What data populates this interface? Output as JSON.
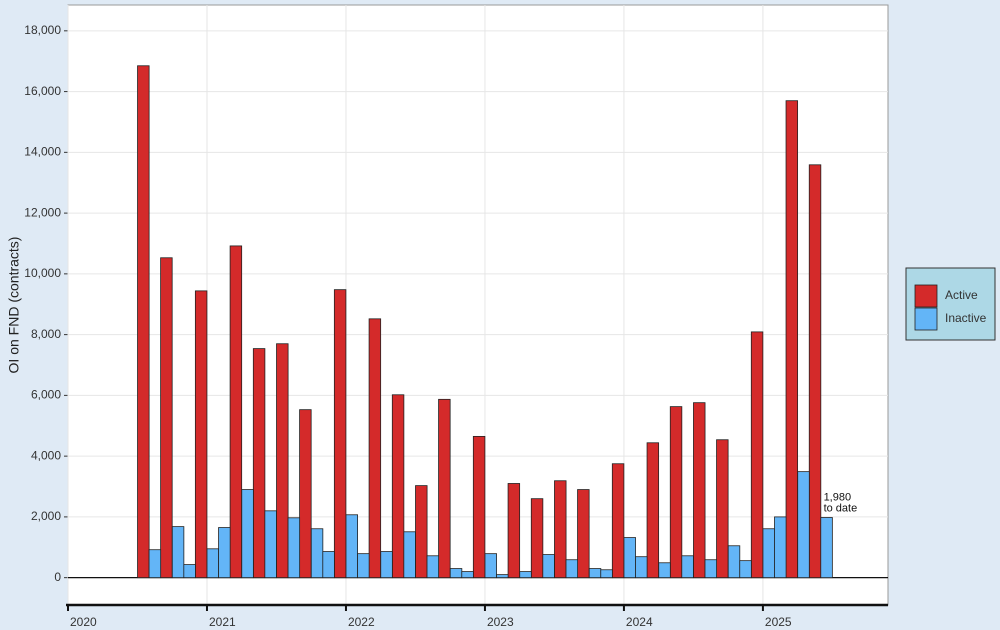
{
  "chart_data": {
    "type": "bar",
    "y_label": "OI on FND (contracts)",
    "xlim": [
      2020,
      2025.9
    ],
    "xticks": [
      2020,
      2021,
      2022,
      2023,
      2024,
      2025
    ],
    "ylim": [
      -900,
      18850
    ],
    "yticks": [
      0,
      {
        "value": 2000,
        "label": "2,000"
      },
      {
        "value": 4000,
        "label": "4,000"
      },
      {
        "value": 6000,
        "label": "6,000"
      },
      {
        "value": 8000,
        "label": "8,000"
      },
      {
        "value": 10000,
        "label": "10,000"
      },
      {
        "value": 12000,
        "label": "12,000"
      },
      {
        "value": 14000,
        "label": "14,000"
      },
      {
        "value": 16000,
        "label": "16,000"
      },
      {
        "value": 18000,
        "label": "18,000"
      }
    ],
    "grid": true,
    "legend": "right",
    "series": [
      {
        "name": "Active",
        "color": "#d42a2a",
        "x": [
          2020.542,
          2020.708,
          2020.958,
          2021.208,
          2021.375,
          2021.542,
          2021.708,
          2021.958,
          2022.208,
          2022.375,
          2022.542,
          2022.708,
          2022.958,
          2023.208,
          2023.375,
          2023.542,
          2023.708,
          2023.958,
          2024.208,
          2024.375,
          2024.542,
          2024.708,
          2024.958,
          2025.208,
          2025.375
        ],
        "values": [
          16850,
          10530,
          9440,
          10920,
          7540,
          7700,
          5530,
          9480,
          8520,
          6020,
          3030,
          5870,
          4650,
          3100,
          2600,
          3190,
          2900,
          3750,
          4440,
          5630,
          5760,
          4540,
          8090,
          15700,
          13590
        ]
      },
      {
        "name": "Inactive",
        "color": "#63b5f7",
        "x": [
          2020.625,
          2020.792,
          2020.875,
          2021.042,
          2021.125,
          2021.292,
          2021.458,
          2021.625,
          2021.792,
          2021.875,
          2022.042,
          2022.125,
          2022.292,
          2022.458,
          2022.625,
          2022.792,
          2022.875,
          2023.042,
          2023.125,
          2023.292,
          2023.458,
          2023.625,
          2023.792,
          2023.875,
          2024.042,
          2024.125,
          2024.292,
          2024.458,
          2024.625,
          2024.792,
          2024.875,
          2025.042,
          2025.125,
          2025.292,
          2025.458
        ],
        "values": [
          920,
          1680,
          430,
          950,
          1650,
          2900,
          2200,
          1970,
          1610,
          860,
          2070,
          790,
          860,
          1510,
          720,
          300,
          200,
          790,
          100,
          200,
          760,
          590,
          300,
          260,
          1320,
          690,
          490,
          720,
          590,
          1050,
          560,
          1610,
          2000,
          3490,
          1980
        ],
        "value_labels": [
          null,
          null,
          null,
          null,
          null,
          null,
          null,
          null,
          null,
          null,
          null,
          null,
          null,
          null,
          null,
          null,
          null,
          null,
          null,
          null,
          null,
          null,
          null,
          null,
          null,
          null,
          null,
          null,
          null,
          null,
          null,
          null,
          null,
          null,
          "1,980"
        ]
      }
    ],
    "annotation": "to date"
  }
}
